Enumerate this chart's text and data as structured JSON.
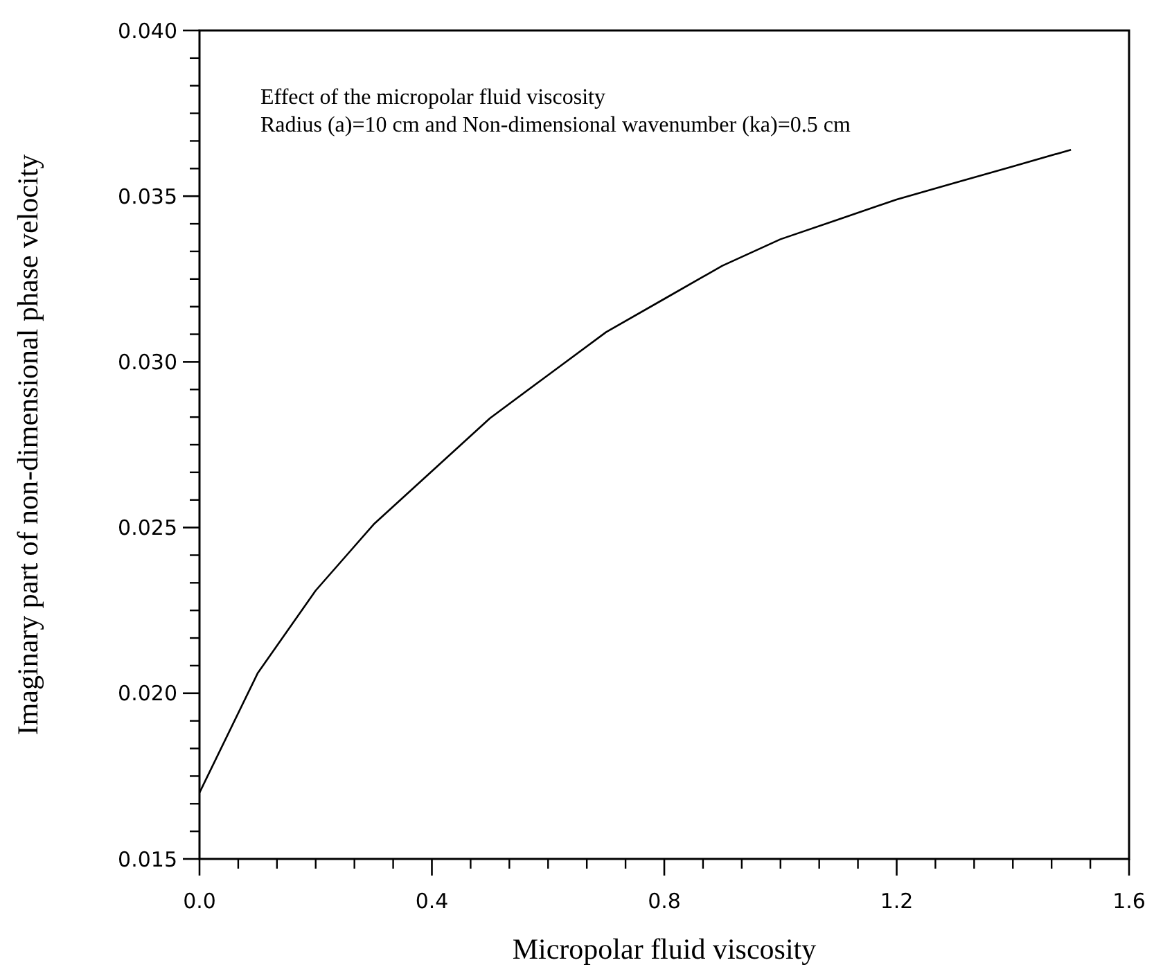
{
  "chart_data": {
    "type": "line",
    "xlabel": "Micropolar fluid viscosity",
    "ylabel": "Imaginary part of non-dimensional phase velocity",
    "annotations": [
      "Effect of the micropolar fluid viscosity",
      "Radius (a)=10 cm and Non-dimensional wavenumber (ka)=0.5 cm"
    ],
    "x": [
      0,
      0.1,
      0.2,
      0.3,
      0.4,
      0.5,
      0.6,
      0.7,
      0.8,
      0.9,
      1.0,
      1.1,
      1.2,
      1.3,
      1.4,
      1.5
    ],
    "series": [
      {
        "color": "#000000",
        "values": [
          0.017,
          0.0206,
          0.0231,
          0.0251,
          0.0267,
          0.0283,
          0.0296,
          0.0309,
          0.0319,
          0.0329,
          0.0337,
          0.0343,
          0.0349,
          0.0354,
          0.0359,
          0.0364
        ]
      }
    ],
    "xlim": [
      0,
      1.6
    ],
    "xticks": [
      {
        "value": 0,
        "label": "0.0"
      },
      0.4,
      0.8,
      1.2,
      1.6
    ],
    "ylim": [
      0.015,
      0.04
    ],
    "yticks": [
      0.015,
      {
        "value": 0.02,
        "label": "0.020"
      },
      0.025,
      {
        "value": 0.03,
        "label": "0.030"
      },
      0.035,
      {
        "value": 0.04,
        "label": "0.040"
      }
    ],
    "grid": false,
    "marker": "none",
    "line_style": "solid"
  }
}
